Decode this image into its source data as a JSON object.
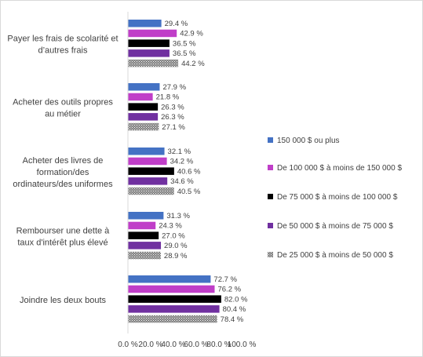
{
  "chart_data": {
    "type": "bar",
    "orientation": "horizontal",
    "categories": [
      [
        "Payer les frais de scolarité et",
        "d’autres frais"
      ],
      [
        "Acheter des outils propres",
        "au métier"
      ],
      [
        "Acheter des livres de",
        "formation/des",
        "ordinateurs/des uniformes"
      ],
      [
        "Rembourser une dette à",
        "taux d'intérêt plus élevé"
      ],
      [
        "Joindre les deux bouts"
      ]
    ],
    "series": [
      {
        "name": "150 000 $ ou plus",
        "values": [
          29.4,
          27.9,
          32.1,
          31.3,
          72.7
        ],
        "labels": [
          "29.4 %",
          "27.9 %",
          "32.1 %",
          "31.3 %",
          "72.7 %"
        ],
        "color": "#4472c4",
        "pattern": "solid"
      },
      {
        "name": "De 100 000 $ à moins de 150 000 $",
        "values": [
          42.9,
          21.8,
          34.2,
          24.3,
          76.2
        ],
        "labels": [
          "42.9 %",
          "21.8 %",
          "34.2 %",
          "24.3 %",
          "76.2 %"
        ],
        "color": "#c03ec8",
        "pattern": "solid"
      },
      {
        "name": "De 75 000 $ à moins de 100 000 $",
        "values": [
          36.5,
          26.3,
          40.6,
          27.0,
          82.0
        ],
        "labels": [
          "36.5 %",
          "26.3 %",
          "40.6 %",
          "27.0 %",
          "82.0 %"
        ],
        "color": "#000000",
        "pattern": "solid"
      },
      {
        "name": "De 50 000 $ à moins de 75 000 $",
        "values": [
          36.5,
          26.3,
          34.6,
          29.0,
          80.4
        ],
        "labels": [
          "36.5 %",
          "26.3 %",
          "34.6 %",
          "29.0 %",
          "80.4 %"
        ],
        "color": "#7030a0",
        "pattern": "solid"
      },
      {
        "name": "De 25 000 $ à moins de 50 000 $",
        "values": [
          44.2,
          27.1,
          40.5,
          28.9,
          78.4
        ],
        "labels": [
          "44.2 %",
          "27.1 %",
          "40.5 %",
          "28.9 %",
          "78.4 %"
        ],
        "color": "#7f7f7f",
        "pattern": "dotted"
      }
    ],
    "x_ticks": [
      "0.0 %",
      "20.0 %",
      "40.0 %",
      "60.0 %",
      "80.0 %",
      "100.0 %"
    ],
    "xlim": [
      0,
      100
    ],
    "grid": false,
    "legend_position": "right"
  }
}
